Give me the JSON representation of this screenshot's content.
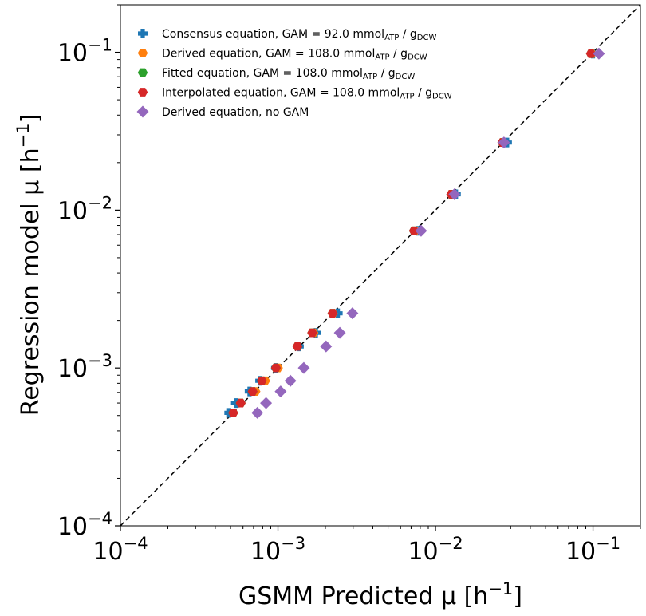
{
  "chart_data": {
    "type": "scatter",
    "title": "",
    "xlabel": "GSMM Predicted μ [h",
    "xlabel_exp": "−1",
    "xlabel_end": "]",
    "ylabel": "Regression model μ [h",
    "ylabel_exp": "−1",
    "ylabel_end": "]",
    "xscale": "log",
    "yscale": "log",
    "xlim": [
      0.0001,
      0.2
    ],
    "ylim": [
      0.0001,
      0.2
    ],
    "grid": false,
    "legend_position": "top-left",
    "x_ticks": [
      {
        "value": 0.0001,
        "base": "10",
        "exp": "−4"
      },
      {
        "value": 0.001,
        "base": "10",
        "exp": "−3"
      },
      {
        "value": 0.01,
        "base": "10",
        "exp": "−2"
      },
      {
        "value": 0.1,
        "base": "10",
        "exp": "−1"
      }
    ],
    "y_ticks": [
      {
        "value": 0.0001,
        "base": "10",
        "exp": "−4"
      },
      {
        "value": 0.001,
        "base": "10",
        "exp": "−3"
      },
      {
        "value": 0.01,
        "base": "10",
        "exp": "−2"
      },
      {
        "value": 0.1,
        "base": "10",
        "exp": "−1"
      }
    ],
    "reference_line": {
      "style": "dashed",
      "color": "#000000",
      "from": [
        0.0001,
        0.0001
      ],
      "to": [
        0.2,
        0.2
      ]
    },
    "series": [
      {
        "name_parts": [
          "Consensus equation, GAM = 92.0 mmol",
          "ATP",
          " / g",
          "DCW"
        ],
        "marker": "plus",
        "color": "#1f77b4",
        "x": [
          0.00049,
          0.00054,
          0.00066,
          0.00077,
          0.00097,
          0.00136,
          0.00174,
          0.0024,
          0.0077,
          0.0135,
          0.0285,
          0.1
        ],
        "y": [
          0.00052,
          0.0006,
          0.00071,
          0.00083,
          0.001,
          0.00137,
          0.00167,
          0.00222,
          0.0074,
          0.0126,
          0.0268,
          0.098
        ]
      },
      {
        "name_parts": [
          "Derived equation, GAM = 108.0 mmol",
          "ATP",
          " / g",
          "DCW"
        ],
        "marker": "hexagon",
        "color": "#ff7f0e",
        "x": [
          0.00052,
          0.00058,
          0.00072,
          0.00083,
          0.001,
          0.00133,
          0.00168,
          0.00223,
          0.0074,
          0.0127,
          0.0268,
          0.098
        ],
        "y": [
          0.00052,
          0.0006,
          0.00071,
          0.00083,
          0.001,
          0.00137,
          0.00167,
          0.00222,
          0.0074,
          0.0126,
          0.0268,
          0.098
        ]
      },
      {
        "name_parts": [
          "Fitted equation, GAM = 108.0 mmol",
          "ATP",
          " / g",
          "DCW"
        ],
        "marker": "hexagon",
        "color": "#2ca02c",
        "x": [
          0.00052,
          0.00058,
          0.00069,
          0.00079,
          0.00097,
          0.00133,
          0.00165,
          0.00222,
          0.0073,
          0.0126,
          0.0266,
          0.097
        ],
        "y": [
          0.00052,
          0.0006,
          0.00071,
          0.00083,
          0.001,
          0.00137,
          0.00167,
          0.00222,
          0.0074,
          0.0126,
          0.0268,
          0.098
        ]
      },
      {
        "name_parts": [
          "Interpolated equation, GAM = 108.0 mmol",
          "ATP",
          " / g",
          "DCW"
        ],
        "marker": "hexagon",
        "color": "#d62728",
        "x": [
          0.00052,
          0.00058,
          0.00069,
          0.00079,
          0.00097,
          0.00133,
          0.00165,
          0.00222,
          0.0073,
          0.0126,
          0.0266,
          0.097
        ],
        "y": [
          0.00052,
          0.0006,
          0.00071,
          0.00083,
          0.001,
          0.00137,
          0.00167,
          0.00222,
          0.0074,
          0.0126,
          0.0268,
          0.098
        ]
      },
      {
        "name_parts": [
          "Derived equation, no GAM"
        ],
        "marker": "diamond",
        "color": "#9467bd",
        "x": [
          0.00074,
          0.00084,
          0.00104,
          0.0012,
          0.00146,
          0.00202,
          0.00247,
          0.00297,
          0.0081,
          0.0132,
          0.0272,
          0.109
        ],
        "y": [
          0.00052,
          0.0006,
          0.00071,
          0.00083,
          0.001,
          0.00137,
          0.00167,
          0.00222,
          0.0074,
          0.0126,
          0.0268,
          0.098
        ]
      }
    ]
  }
}
